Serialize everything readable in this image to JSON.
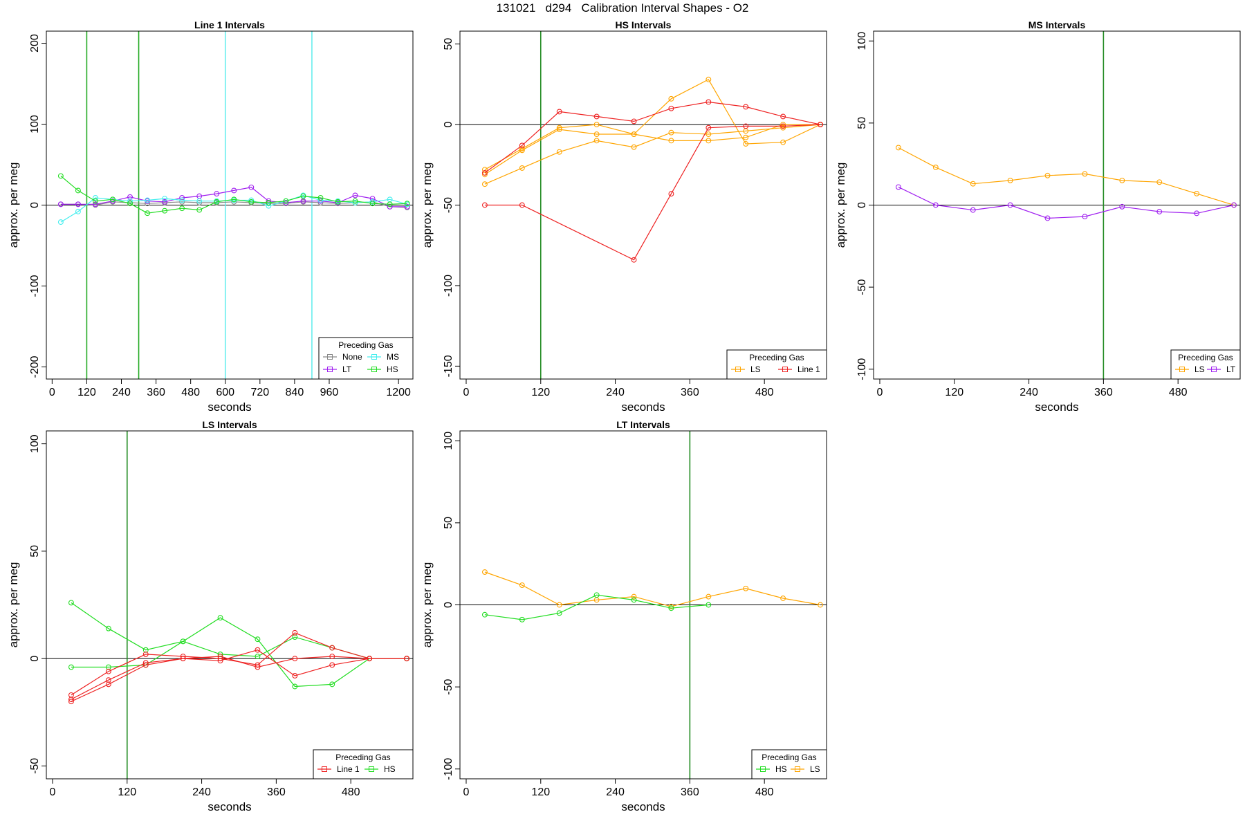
{
  "title": "131021   d294   Calibration Interval Shapes - O2",
  "chart_data": [
    {
      "type": "line",
      "title": "Line 1 Intervals",
      "xlabel": "seconds",
      "ylabel": "approx. per meg",
      "xlim": [
        -20,
        1250
      ],
      "ylim": [
        -215,
        215
      ],
      "xticks": [
        0,
        120,
        240,
        360,
        480,
        600,
        720,
        840,
        960,
        1200
      ],
      "yticks": [
        -200,
        -100,
        0,
        100,
        200
      ],
      "vlines": [
        {
          "x": 120,
          "color": "#22aa22"
        },
        {
          "x": 300,
          "color": "#22aa22"
        },
        {
          "x": 600,
          "color": "#66eeee"
        },
        {
          "x": 900,
          "color": "#66eeee"
        }
      ],
      "legend": {
        "title": "Preceding Gas",
        "position": "bottom-right",
        "columns": 2,
        "entries": [
          {
            "label": "None",
            "color": "#888888"
          },
          {
            "label": "MS",
            "color": "#44eeee"
          },
          {
            "label": "LT",
            "color": "#a020f0"
          },
          {
            "label": "HS",
            "color": "#22dd22"
          }
        ]
      },
      "series": [
        {
          "color": "#888888",
          "x": [
            30,
            90,
            150,
            210,
            270,
            330,
            390,
            450,
            510,
            570,
            630,
            690,
            750,
            810,
            870,
            930,
            990,
            1050,
            1110,
            1170,
            1230
          ],
          "y": [
            1,
            1,
            0,
            4,
            3,
            2,
            3,
            4,
            3,
            3,
            4,
            3,
            2,
            2,
            4,
            3,
            2,
            3,
            4,
            -2,
            -3
          ]
        },
        {
          "color": "#a020f0",
          "x": [
            30,
            90,
            150,
            210,
            270,
            330,
            390,
            450,
            510,
            570,
            630,
            690,
            750,
            810,
            870,
            930,
            990,
            1050,
            1110,
            1170,
            1230
          ],
          "y": [
            1,
            1,
            1,
            5,
            10,
            5,
            4,
            9,
            11,
            14,
            18,
            22,
            5,
            3,
            5,
            5,
            3,
            12,
            8,
            -2,
            -2
          ]
        },
        {
          "color": "#44eeee",
          "x": [
            30,
            90,
            150,
            210,
            270,
            330,
            390,
            450,
            510,
            570,
            630,
            690,
            750,
            810,
            870,
            930,
            990,
            1050,
            1110,
            1170,
            1230
          ],
          "y": [
            -21,
            -8,
            9,
            7,
            5,
            6,
            8,
            6,
            5,
            5,
            6,
            6,
            -1,
            5,
            12,
            6,
            5,
            3,
            4,
            7,
            1
          ]
        },
        {
          "color": "#22dd22",
          "x": [
            30,
            90,
            150,
            210,
            270,
            330,
            390,
            450,
            510,
            570,
            630,
            690,
            750,
            810,
            870,
            930,
            990,
            1050,
            1110,
            1170,
            1230
          ],
          "y": [
            36,
            18,
            5,
            7,
            2,
            -10,
            -7,
            -4,
            -6,
            4,
            7,
            4,
            3,
            5,
            11,
            9,
            4,
            5,
            2,
            1,
            2
          ]
        }
      ]
    },
    {
      "type": "line",
      "title": "HS Intervals",
      "xlabel": "seconds",
      "ylabel": "approx. per meg",
      "xlim": [
        -10,
        580
      ],
      "ylim": [
        -158,
        58
      ],
      "xticks": [
        0,
        120,
        240,
        360,
        480
      ],
      "yticks": [
        -150,
        -100,
        -50,
        0,
        50
      ],
      "vlines": [
        {
          "x": 120,
          "color": "#228b22"
        }
      ],
      "legend": {
        "title": "Preceding Gas",
        "position": "bottom-right",
        "columns": 2,
        "entries": [
          {
            "label": "LS",
            "color": "#ffa500"
          },
          {
            "label": "Line 1",
            "color": "#ee2222"
          }
        ]
      },
      "series": [
        {
          "color": "#ffa500",
          "x": [
            30,
            90,
            150,
            210,
            270,
            330,
            390,
            450,
            510,
            570
          ],
          "y": [
            -28,
            -15,
            -2,
            0,
            -6,
            16,
            28,
            -12,
            -11,
            0
          ]
        },
        {
          "color": "#ffa500",
          "x": [
            30,
            90,
            150,
            210,
            270,
            330,
            390,
            450,
            510,
            570
          ],
          "y": [
            -37,
            -27,
            -17,
            -10,
            -14,
            -5,
            -6,
            -4,
            -2,
            0
          ]
        },
        {
          "color": "#ffa500",
          "x": [
            30,
            90,
            150,
            210,
            270,
            330,
            390,
            450,
            510,
            570
          ],
          "y": [
            -31,
            -16,
            -3,
            -6,
            -6,
            -10,
            -10,
            -8,
            0,
            0
          ]
        },
        {
          "color": "#ee2222",
          "x": [
            30,
            90,
            150,
            210,
            270,
            330,
            390,
            450,
            510,
            570
          ],
          "y": [
            -30,
            -13,
            8,
            5,
            2,
            10,
            14,
            11,
            5,
            0
          ]
        },
        {
          "color": "#ee2222",
          "x": [
            30,
            90,
            270,
            330,
            390,
            450,
            510,
            570
          ],
          "y": [
            -50,
            -50,
            -84,
            -43,
            -2,
            -1,
            -1,
            0
          ]
        }
      ]
    },
    {
      "type": "line",
      "title": "MS Intervals",
      "xlabel": "seconds",
      "ylabel": "approx. per meg",
      "xlim": [
        -10,
        580
      ],
      "ylim": [
        -106,
        106
      ],
      "xticks": [
        0,
        120,
        240,
        360,
        480
      ],
      "yticks": [
        -100,
        -50,
        0,
        50,
        100
      ],
      "vlines": [
        {
          "x": 360,
          "color": "#228b22"
        }
      ],
      "legend": {
        "title": "Preceding Gas",
        "position": "bottom-right",
        "columns": 2,
        "entries": [
          {
            "label": "LS",
            "color": "#ffa500"
          },
          {
            "label": "LT",
            "color": "#a020f0"
          }
        ]
      },
      "series": [
        {
          "color": "#ffa500",
          "x": [
            30,
            90,
            150,
            210,
            270,
            330,
            390,
            450,
            510,
            570
          ],
          "y": [
            35,
            23,
            13,
            15,
            18,
            19,
            15,
            14,
            7,
            0
          ]
        },
        {
          "color": "#a020f0",
          "x": [
            30,
            90,
            150,
            210,
            270,
            330,
            390,
            450,
            510,
            570
          ],
          "y": [
            11,
            0,
            -3,
            0,
            -8,
            -7,
            -1,
            -4,
            -5,
            0
          ]
        }
      ]
    },
    {
      "type": "line",
      "title": "LS Intervals",
      "xlabel": "seconds",
      "ylabel": "approx. per meg",
      "xlim": [
        -10,
        580
      ],
      "ylim": [
        -56,
        106
      ],
      "xticks": [
        0,
        120,
        240,
        360,
        480
      ],
      "yticks": [
        -50,
        0,
        50,
        100
      ],
      "vlines": [
        {
          "x": 120,
          "color": "#228b22"
        }
      ],
      "legend": {
        "title": "Preceding Gas",
        "position": "bottom-right",
        "columns": 2,
        "entries": [
          {
            "label": "Line 1",
            "color": "#ee2222"
          },
          {
            "label": "HS",
            "color": "#22dd22"
          }
        ]
      },
      "series": [
        {
          "color": "#22dd22",
          "x": [
            30,
            90,
            150,
            210,
            270,
            330,
            390,
            450,
            510,
            570
          ],
          "y": [
            26,
            14,
            4,
            8,
            19,
            9,
            -13,
            -12,
            0,
            0
          ]
        },
        {
          "color": "#22dd22",
          "x": [
            30,
            90,
            150,
            210,
            270,
            330,
            390,
            450,
            510,
            570
          ],
          "y": [
            -4,
            -4,
            -3,
            8,
            2,
            1,
            10,
            5,
            0,
            0
          ]
        },
        {
          "color": "#ee2222",
          "x": [
            30,
            90,
            150,
            210,
            270,
            330,
            390,
            450,
            510,
            570
          ],
          "y": [
            -17,
            -6,
            2,
            1,
            0,
            -3,
            12,
            5,
            0,
            0
          ]
        },
        {
          "color": "#ee2222",
          "x": [
            30,
            90,
            150,
            210,
            270,
            330,
            390,
            450,
            510,
            570
          ],
          "y": [
            -19,
            -10,
            -2,
            0,
            -1,
            4,
            -8,
            -3,
            0,
            0
          ]
        },
        {
          "color": "#ee2222",
          "x": [
            30,
            90,
            150,
            210,
            270,
            330,
            390,
            450,
            510,
            570
          ],
          "y": [
            -20,
            -12,
            -3,
            0,
            1,
            -4,
            0,
            1,
            0,
            0
          ]
        }
      ]
    },
    {
      "type": "line",
      "title": "LT Intervals",
      "xlabel": "seconds",
      "ylabel": "approx. per meg",
      "xlim": [
        -10,
        580
      ],
      "ylim": [
        -106,
        106
      ],
      "xticks": [
        0,
        120,
        240,
        360,
        480
      ],
      "yticks": [
        -100,
        -50,
        0,
        50,
        100
      ],
      "vlines": [
        {
          "x": 360,
          "color": "#228b22"
        }
      ],
      "legend": {
        "title": "Preceding Gas",
        "position": "bottom-right",
        "columns": 2,
        "entries": [
          {
            "label": "HS",
            "color": "#22dd22"
          },
          {
            "label": "LS",
            "color": "#ffa500"
          }
        ]
      },
      "series": [
        {
          "color": "#ffa500",
          "x": [
            30,
            90,
            150,
            210,
            270,
            330,
            390,
            450,
            510,
            570
          ],
          "y": [
            20,
            12,
            0,
            3,
            5,
            -1,
            5,
            10,
            4,
            0
          ]
        },
        {
          "color": "#22dd22",
          "x": [
            30,
            90,
            150,
            210,
            270,
            330,
            390
          ],
          "y": [
            -6,
            -9,
            -5,
            6,
            3,
            -2,
            0
          ]
        }
      ]
    }
  ]
}
